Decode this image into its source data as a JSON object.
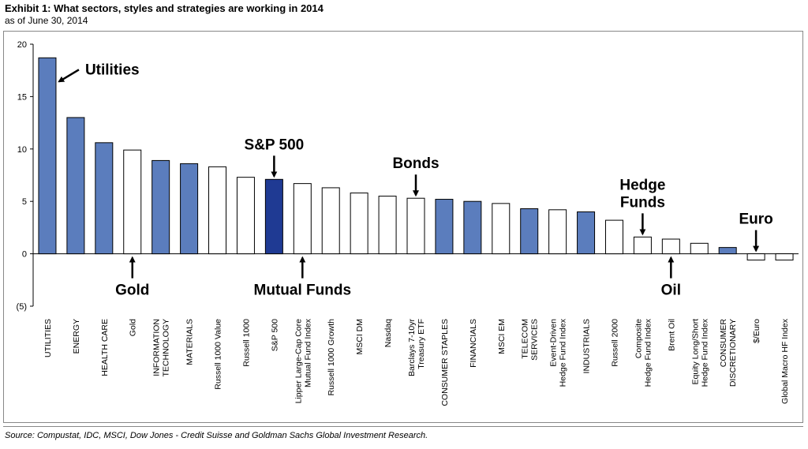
{
  "header": {
    "title": "Exhibit 1: What sectors, styles and strategies are working in 2014",
    "subtitle": "as of June 30, 2014"
  },
  "footer": {
    "source": "Source: Compustat, IDC, MSCI, Dow Jones - Credit Suisse and Goldman Sachs Global Investment Research."
  },
  "colors": {
    "sector_fill": "#5b7dbd",
    "highlight_fill": "#1f3a93",
    "other_fill": "#ffffff",
    "bar_stroke": "#000000"
  },
  "chart_data": {
    "type": "bar",
    "title": "",
    "xlabel": "",
    "ylabel": "",
    "ylim": [
      -5,
      20
    ],
    "yticks": [
      {
        "value": 20,
        "label": "20"
      },
      {
        "value": 15,
        "label": "15"
      },
      {
        "value": 10,
        "label": "10"
      },
      {
        "value": 5,
        "label": "5"
      },
      {
        "value": 0,
        "label": "0"
      },
      {
        "value": -5,
        "label": "(5)"
      }
    ],
    "grid": false,
    "categories": [
      [
        "UTILITIES"
      ],
      [
        "ENERGY"
      ],
      [
        "HEALTH CARE"
      ],
      [
        "Gold"
      ],
      [
        "INFORMATION",
        "TECHNOLOGY"
      ],
      [
        "MATERIALS"
      ],
      [
        "Russell 1000 Value"
      ],
      [
        "Russell 1000"
      ],
      [
        "S&P 500"
      ],
      [
        "Lipper Large-Cap Core",
        "Mutual Fund Index"
      ],
      [
        "Russell 1000 Growth"
      ],
      [
        "MSCI DM"
      ],
      [
        "Nasdaq"
      ],
      [
        "Barclays 7-10yr",
        "Treasury ETF"
      ],
      [
        "CONSUMER STAPLES"
      ],
      [
        "FINANCIALS"
      ],
      [
        "MSCI EM"
      ],
      [
        "TELECOM",
        "SERVICES"
      ],
      [
        "Event-Driven",
        "Hedge Fund Index"
      ],
      [
        "INDUSTRIALS"
      ],
      [
        "Russell 2000"
      ],
      [
        "Composite",
        "Hedge Fund Index"
      ],
      [
        "Brent Oil"
      ],
      [
        "Equity Long/Short",
        "Hedge Fund Index"
      ],
      [
        "CONSUMER",
        "DISCRETIONARY"
      ],
      [
        "$/Euro"
      ],
      [
        "Global Macro HF Index"
      ]
    ],
    "values": [
      18.7,
      13.0,
      10.6,
      9.9,
      8.9,
      8.6,
      8.3,
      7.3,
      7.1,
      6.7,
      6.3,
      5.8,
      5.5,
      5.3,
      5.2,
      5.0,
      4.8,
      4.3,
      4.2,
      4.0,
      3.2,
      1.6,
      1.4,
      1.0,
      0.6,
      -0.6,
      -0.6
    ],
    "fills": [
      "sector",
      "sector",
      "sector",
      "other",
      "sector",
      "sector",
      "other",
      "other",
      "highlight",
      "other",
      "other",
      "other",
      "other",
      "other",
      "sector",
      "sector",
      "other",
      "sector",
      "other",
      "sector",
      "other",
      "other",
      "other",
      "other",
      "sector",
      "other",
      "other"
    ],
    "annotations": [
      {
        "lines": [
          "Utilities"
        ],
        "target_index": 0,
        "style": "left-arrow"
      },
      {
        "lines": [
          "Gold"
        ],
        "target_index": 3,
        "style": "below-up"
      },
      {
        "lines": [
          "S&P 500"
        ],
        "target_index": 8,
        "style": "above-down"
      },
      {
        "lines": [
          "Mutual Funds"
        ],
        "target_index": 9,
        "style": "below-up"
      },
      {
        "lines": [
          "Bonds"
        ],
        "target_index": 13,
        "style": "above-down"
      },
      {
        "lines": [
          "Hedge",
          "Funds"
        ],
        "target_index": 21,
        "style": "above-down"
      },
      {
        "lines": [
          "Oil"
        ],
        "target_index": 22,
        "style": "below-up"
      },
      {
        "lines": [
          "Euro"
        ],
        "target_index": 25,
        "style": "above-down"
      }
    ]
  }
}
